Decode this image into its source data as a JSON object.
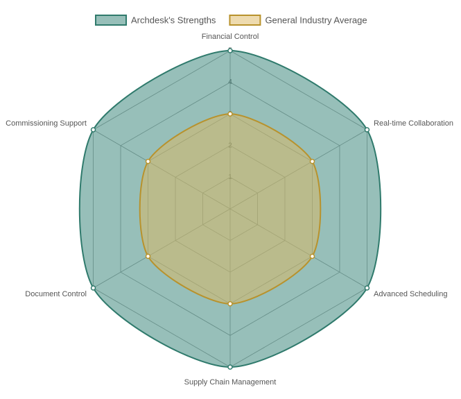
{
  "chart_data": {
    "type": "radar",
    "categories": [
      "Financial Control",
      "Real-time Collaboration",
      "Advanced Scheduling",
      "Supply Chain Management",
      "Document Control",
      "Commissioning Support"
    ],
    "series": [
      {
        "name": "Archdesk's Strengths",
        "color": "#2f7a6c",
        "fill": "rgba(47,128,115,0.5)",
        "values": [
          5,
          5,
          5,
          5,
          5,
          5
        ]
      },
      {
        "name": "General Industry Average",
        "color": "#b8922c",
        "fill": "rgba(222,184,96,0.5)",
        "values": [
          3,
          3,
          3,
          3,
          3,
          3
        ]
      }
    ],
    "ylim": [
      0,
      5
    ],
    "yticks": [
      1,
      2,
      3,
      4,
      5
    ],
    "grid": true
  }
}
